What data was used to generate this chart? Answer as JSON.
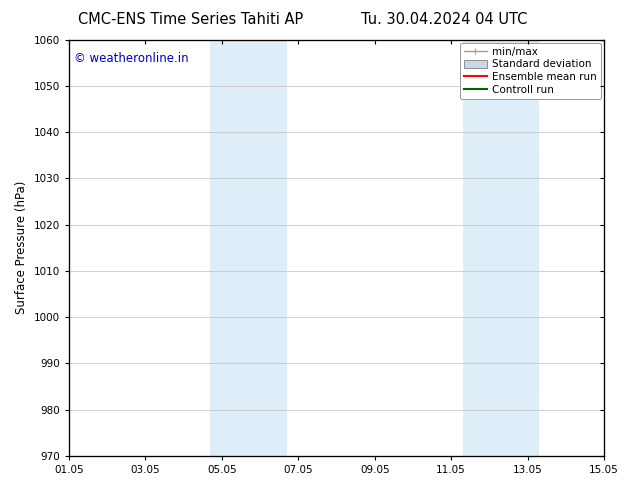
{
  "title_left": "CMC-ENS Time Series Tahiti AP",
  "title_right": "Tu. 30.04.2024 04 UTC",
  "ylabel": "Surface Pressure (hPa)",
  "ylim": [
    970,
    1060
  ],
  "yticks": [
    970,
    980,
    990,
    1000,
    1010,
    1020,
    1030,
    1040,
    1050,
    1060
  ],
  "xtick_labels": [
    "01.05",
    "03.05",
    "05.05",
    "07.05",
    "09.05",
    "11.05",
    "13.05",
    "15.05"
  ],
  "xtick_positions": [
    0,
    2,
    4,
    6,
    8,
    10,
    12,
    14
  ],
  "xlim": [
    0,
    14
  ],
  "shaded_regions": [
    {
      "x_start": 3.7,
      "x_end": 5.7,
      "color": "#ddeef8"
    },
    {
      "x_start": 10.3,
      "x_end": 12.3,
      "color": "#ddeef8"
    }
  ],
  "legend_items": [
    {
      "label": "min/max",
      "color": "#a0a0a0",
      "style": "line_with_caps"
    },
    {
      "label": "Standard deviation",
      "color": "#c8d8e8",
      "style": "filled_box"
    },
    {
      "label": "Ensemble mean run",
      "color": "#ff0000",
      "style": "line"
    },
    {
      "label": "Controll run",
      "color": "#008000",
      "style": "line"
    }
  ],
  "watermark_text": "© weatheronline.in",
  "watermark_color": "#0000cc",
  "watermark_fontsize": 8.5,
  "bg_color": "#ffffff",
  "grid_color": "#c8c8c8",
  "title_fontsize": 10.5,
  "tick_fontsize": 7.5,
  "ylabel_fontsize": 8.5,
  "legend_fontsize": 7.5
}
